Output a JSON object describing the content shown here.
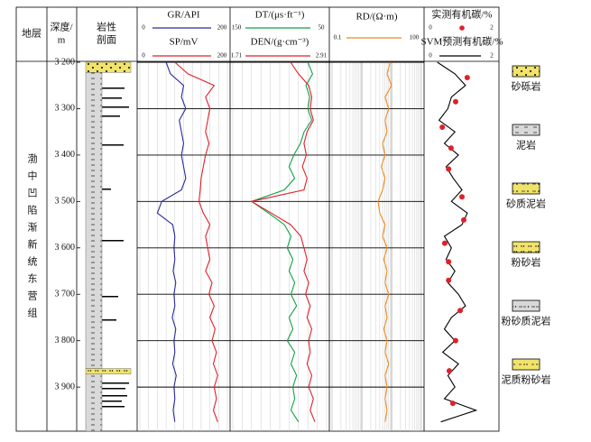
{
  "chart_data": {
    "type": "well_log",
    "headers": {
      "stratum": "地层",
      "depth": [
        "深度/",
        "m"
      ],
      "lithology": [
        "岩性",
        "剖面"
      ]
    },
    "stratum": "渤中凹陷渐新统东营组",
    "ylim": [
      3200,
      3995
    ],
    "yticks": [
      {
        "value": 3200,
        "label": "3 200"
      },
      {
        "value": 3300,
        "label": "3 300"
      },
      {
        "value": 3400,
        "label": "3 400"
      },
      {
        "value": 3500,
        "label": "3 500"
      },
      {
        "value": 3600,
        "label": "3 600"
      },
      {
        "value": 3700,
        "label": "3 700"
      },
      {
        "value": 3800,
        "label": "3 800"
      },
      {
        "value": 3900,
        "label": "3 900"
      }
    ],
    "depth": [
      3200,
      3225,
      3250,
      3275,
      3300,
      3325,
      3350,
      3375,
      3400,
      3425,
      3450,
      3475,
      3500,
      3525,
      3550,
      3575,
      3600,
      3625,
      3650,
      3675,
      3700,
      3725,
      3750,
      3775,
      3800,
      3825,
      3850,
      3875,
      3900,
      3925,
      3950,
      3975
    ],
    "tracks": [
      {
        "grid": true,
        "log": false,
        "curves": [
          {
            "name": "GR/API",
            "color": "#2b2b9e",
            "scale": [
              0,
              200
            ],
            "values": [
              60,
              70,
              100,
              95,
              105,
              90,
              95,
              100,
              95,
              100,
              105,
              95,
              50,
              40,
              75,
              80,
              78,
              80,
              76,
              82,
              78,
              80,
              74,
              82,
              78,
              80,
              75,
              83,
              78,
              80,
              76,
              80
            ]
          },
          {
            "name": "SP/mV",
            "color": "#e0202a",
            "scale": [
              0,
              200
            ],
            "values": [
              80,
              110,
              170,
              150,
              160,
              155,
              150,
              158,
              150,
              145,
              140,
              138,
              135,
              145,
              160,
              150,
              155,
              160,
              150,
              165,
              158,
              170,
              160,
              172,
              165,
              175,
              168,
              178,
              170,
              175,
              168,
              178
            ]
          }
        ]
      },
      {
        "grid": true,
        "log": false,
        "curves": [
          {
            "name": "DT/(μs·ft⁻¹)",
            "color": "#12a04a",
            "scale": [
              150,
              50
            ],
            "values": [
              70,
              65,
              72,
              68,
              70,
              66,
              74,
              78,
              85,
              90,
              84,
              95,
              130,
              112,
              95,
              88,
              92,
              86,
              90,
              84,
              88,
              82,
              90,
              86,
              92,
              84,
              88,
              82,
              86,
              84,
              88,
              80
            ]
          },
          {
            "name": "DEN/(g·cm⁻³)",
            "color": "#e0202a",
            "scale": [
              1.71,
              2.91
            ],
            "values": [
              2.45,
              2.55,
              2.68,
              2.72,
              2.7,
              2.74,
              2.66,
              2.62,
              2.65,
              2.6,
              2.66,
              2.62,
              1.95,
              2.2,
              2.45,
              2.58,
              2.62,
              2.66,
              2.62,
              2.68,
              2.64,
              2.7,
              2.66,
              2.72,
              2.68,
              2.7,
              2.66,
              2.72,
              2.68,
              2.74,
              2.7,
              2.76
            ]
          }
        ]
      },
      {
        "grid": true,
        "log": true,
        "curves": [
          {
            "name": "RD/(Ω·m)",
            "color": "#f08a1c",
            "scale": [
              0.1,
              100
            ],
            "values": [
              9,
              7,
              10,
              6,
              8,
              6,
              7,
              5,
              6,
              4.5,
              6,
              5,
              3.5,
              4,
              6,
              5,
              7,
              5.5,
              7,
              6,
              8,
              6,
              7,
              5.5,
              7,
              6,
              8,
              6,
              7,
              6,
              7,
              6
            ]
          }
        ]
      },
      {
        "grid": false,
        "log": false,
        "measured": {
          "name": "实测有机碳/%",
          "color": "#e0202a",
          "scale": [
            0,
            2
          ],
          "depth": [
            3233,
            3285,
            3340,
            3385,
            3430,
            3490,
            3540,
            3590,
            3630,
            3670,
            3735,
            3800,
            3865,
            3935
          ],
          "values": [
            1.15,
            0.82,
            0.44,
            0.69,
            0.62,
            1.0,
            1.05,
            0.51,
            0.62,
            0.62,
            0.95,
            0.82,
            0.64,
            0.74
          ]
        },
        "curves": [
          {
            "name": "SVM预测有机碳/%",
            "color": "#000000",
            "scale": [
              0,
              2
            ],
            "values": [
              0.3,
              0.8,
              1.1,
              0.7,
              0.6,
              0.35,
              0.8,
              0.5,
              0.9,
              0.55,
              0.75,
              1.0,
              0.7,
              1.15,
              1.0,
              0.5,
              0.7,
              0.55,
              0.8,
              0.6,
              0.9,
              1.1,
              0.7,
              0.5,
              0.8,
              0.45,
              0.9,
              0.6,
              0.8,
              0.5,
              1.4,
              0.4
            ]
          }
        ]
      }
    ],
    "lithology": [
      {
        "top": 3200,
        "bottom": 3222,
        "pattern": "dots"
      },
      {
        "top": 3222,
        "bottom": 3860,
        "pattern": "dash"
      },
      {
        "top": 3860,
        "bottom": 3872,
        "pattern": "silt"
      },
      {
        "top": 3872,
        "bottom": 3995,
        "pattern": "dash"
      }
    ],
    "legend": [
      {
        "name": "砂砾岩",
        "pattern": "dots"
      },
      {
        "name": "泥岩",
        "pattern": "dash"
      },
      {
        "name": "砂质泥岩",
        "pattern": "sand-mud"
      },
      {
        "name": "粉砂岩",
        "pattern": "silt"
      },
      {
        "name": "粉砂质泥岩",
        "pattern": "silt-mud"
      },
      {
        "name": "泥质粉砂岩",
        "pattern": "mud-silt"
      }
    ]
  }
}
